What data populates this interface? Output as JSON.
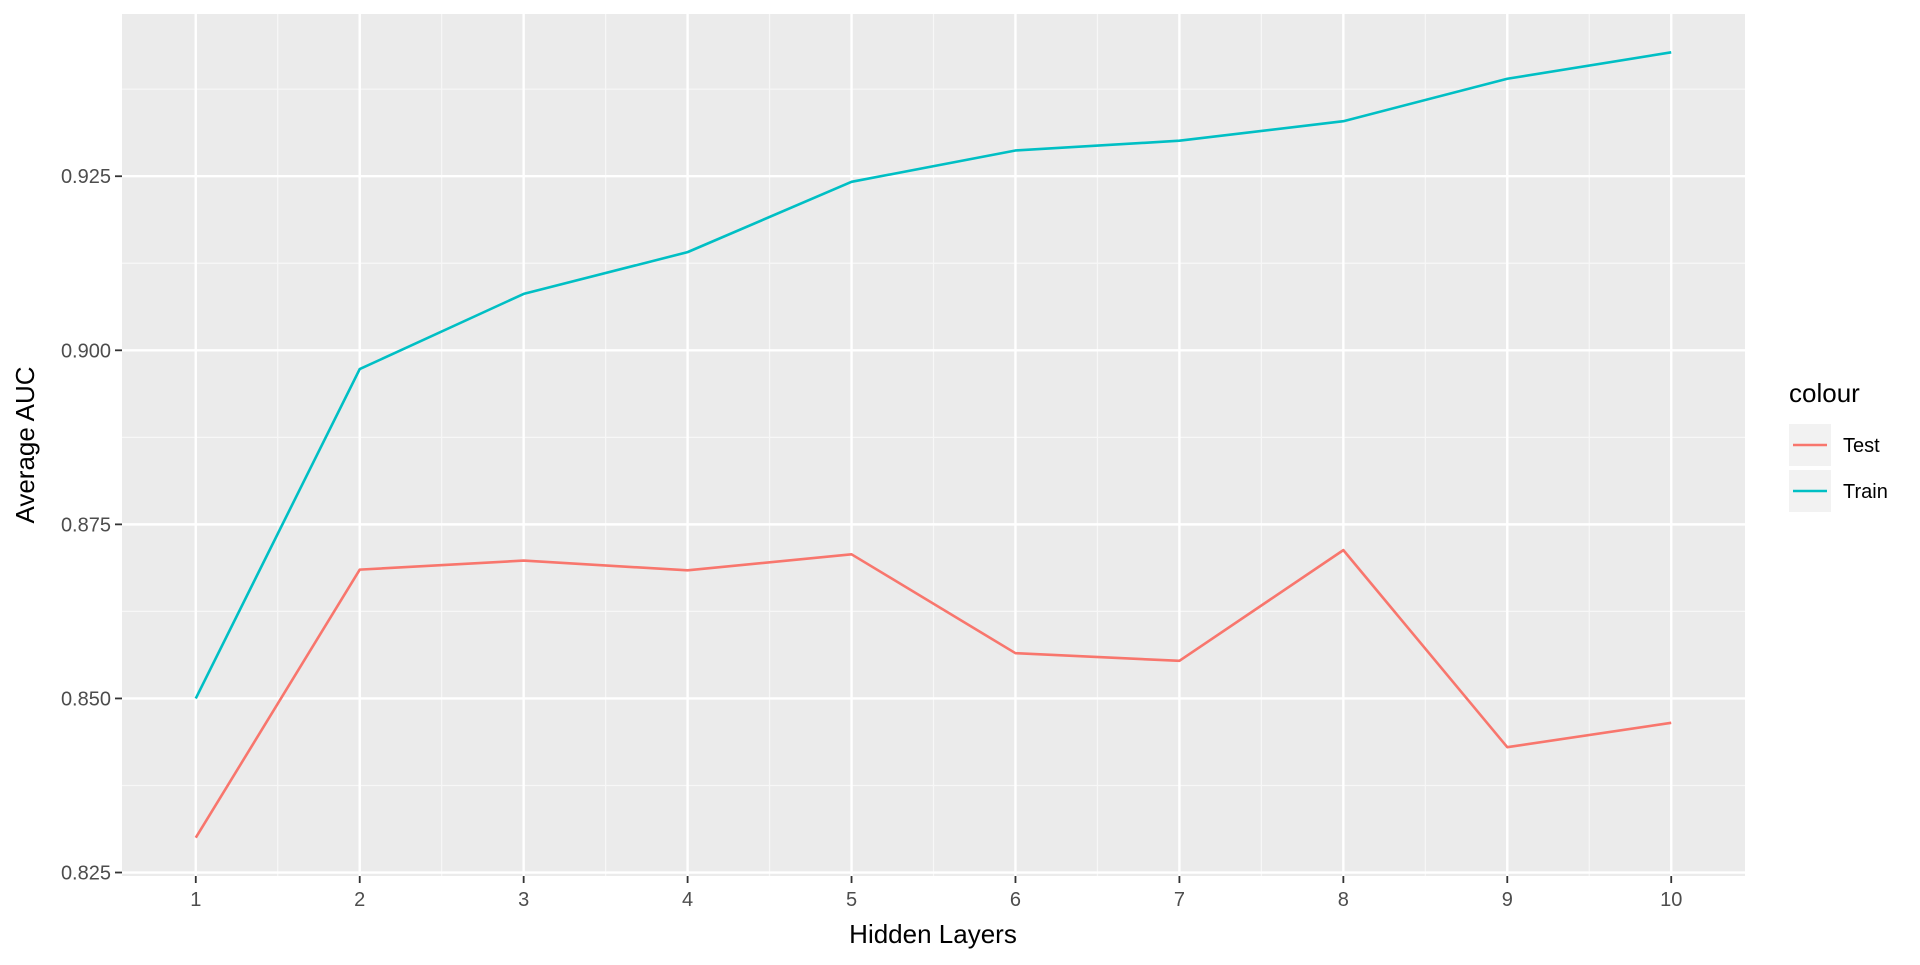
{
  "chart_data": {
    "type": "line",
    "title": "",
    "xlabel": "Hidden Layers",
    "ylabel": "Average AUC",
    "x": [
      1,
      2,
      3,
      4,
      5,
      6,
      7,
      8,
      9,
      10
    ],
    "x_ticks": [
      "1",
      "2",
      "3",
      "4",
      "5",
      "6",
      "7",
      "8",
      "9",
      "10"
    ],
    "y_ticks": [
      "0.825",
      "0.850",
      "0.875",
      "0.900",
      "0.925"
    ],
    "y_tick_values": [
      0.825,
      0.85,
      0.875,
      0.9,
      0.925
    ],
    "xlim": [
      0.55,
      10.45
    ],
    "ylim": [
      0.8245,
      0.9483
    ],
    "grid": true,
    "legend": {
      "title": "colour",
      "placement": "right"
    },
    "series": [
      {
        "name": "Test",
        "color": "#F8766D",
        "values": [
          0.83,
          0.8685,
          0.8698,
          0.8684,
          0.8707,
          0.8565,
          0.8554,
          0.8713,
          0.843,
          0.8465
        ]
      },
      {
        "name": "Train",
        "color": "#00BFC4",
        "values": [
          0.85,
          0.8973,
          0.9081,
          0.9141,
          0.9242,
          0.9287,
          0.9301,
          0.9329,
          0.939,
          0.9428
        ]
      }
    ]
  }
}
